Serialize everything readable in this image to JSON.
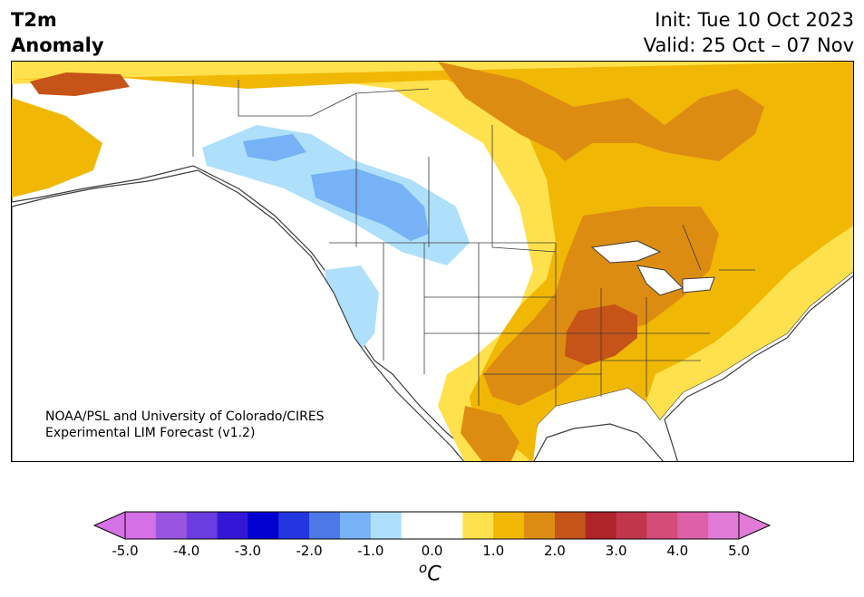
{
  "header": {
    "left_line1": "T2m",
    "left_line2": "Anomaly",
    "right_line1": "Init: Tue 10 Oct 2023",
    "right_line2": "Valid: 25 Oct – 07 Nov"
  },
  "credit": {
    "line1": "NOAA/PSL and University of Colorado/CIRES",
    "line2": "Experimental LIM Forecast (v1.2)"
  },
  "colorbar": {
    "unit_base": "C",
    "unit_sup": "o",
    "ticks": [
      "-5.0",
      "-4.0",
      "-3.0",
      "-2.0",
      "-1.0",
      "0.0",
      "1.0",
      "2.0",
      "3.0",
      "4.0",
      "5.0"
    ],
    "colors": [
      "#d670e6",
      "#9a55e0",
      "#6a3de0",
      "#3217d6",
      "#0000d0",
      "#2336e0",
      "#4c78e8",
      "#76b2f5",
      "#aee0fc",
      "#ffffff",
      "#ffffff",
      "#ffe14d",
      "#f1b705",
      "#dd8c12",
      "#c65317",
      "#ae2428",
      "#c2364c",
      "#d44d78",
      "#de60a9",
      "#e27bd8"
    ],
    "under_color": "#d670e6",
    "over_color": "#e27bd8"
  },
  "map": {
    "colors": {
      "ocean": "#ffffff",
      "neutral": "#ffffff",
      "cool1": "#aee0fc",
      "cool2": "#76b2f5",
      "warm1": "#ffe14d",
      "warm2": "#f1b705",
      "warm3": "#dd8c12",
      "warm4": "#c65317",
      "border": "#3c3c3c"
    }
  }
}
